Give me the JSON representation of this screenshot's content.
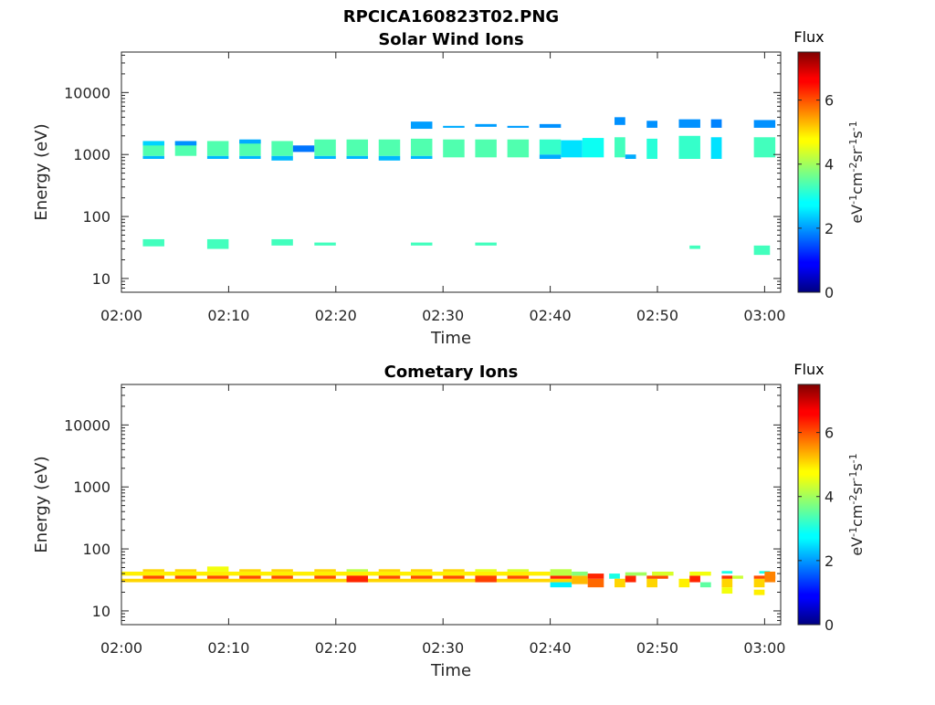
{
  "figure": {
    "title": "RPCICA160823T02.PNG"
  },
  "chart_data": [
    {
      "type": "heatmap",
      "title": "Solar Wind Ions",
      "xlabel": "Time",
      "ylabel": "Energy (eV)",
      "yscale": "log",
      "ylim": [
        6,
        45000
      ],
      "xlim_minutes": [
        0,
        61.5
      ],
      "x_ticks": [
        "02:00",
        "02:10",
        "02:20",
        "02:30",
        "02:40",
        "02:50",
        "03:00"
      ],
      "y_ticks": [
        "10",
        "100",
        "1000",
        "10000"
      ],
      "colorbar": {
        "title": "Flux",
        "label": "eV-1cm-2sr-1s-1",
        "range": [
          0,
          7.5
        ],
        "ticks": [
          "0",
          "2",
          "4",
          "6"
        ]
      },
      "cells": [
        [
          "02:02:00",
          "02:04:00",
          850,
          950,
          2.3
        ],
        [
          "02:02:00",
          "02:04:00",
          950,
          1600,
          3.4
        ],
        [
          "02:02:00",
          "02:04:00",
          1400,
          1650,
          2.5
        ],
        [
          "02:02:00",
          "02:04:00",
          33,
          43,
          3.3
        ],
        [
          "02:05:00",
          "02:07:00",
          950,
          1600,
          3.4
        ],
        [
          "02:05:00",
          "02:07:00",
          1400,
          1650,
          2.0
        ],
        [
          "02:08:00",
          "02:10:00",
          850,
          950,
          2.3
        ],
        [
          "02:08:00",
          "02:10:00",
          950,
          1650,
          3.4
        ],
        [
          "02:08:00",
          "02:10:00",
          30,
          43,
          3.3
        ],
        [
          "02:11:00",
          "02:13:00",
          850,
          950,
          2.3
        ],
        [
          "02:11:00",
          "02:13:00",
          950,
          1700,
          3.4
        ],
        [
          "02:11:00",
          "02:13:00",
          1500,
          1750,
          2.2
        ],
        [
          "02:14:00",
          "02:16:00",
          800,
          950,
          2.3
        ],
        [
          "02:14:00",
          "02:16:00",
          950,
          1650,
          3.4
        ],
        [
          "02:14:00",
          "02:16:00",
          34,
          43,
          3.3
        ],
        [
          "02:16:00",
          "02:18:00",
          1100,
          1400,
          1.8
        ],
        [
          "02:18:00",
          "02:20:00",
          850,
          950,
          2.3
        ],
        [
          "02:18:00",
          "02:20:00",
          950,
          1750,
          3.4
        ],
        [
          "02:18:00",
          "02:20:00",
          34,
          38,
          3.3
        ],
        [
          "02:21:00",
          "02:23:00",
          850,
          950,
          2.3
        ],
        [
          "02:21:00",
          "02:23:00",
          950,
          1750,
          3.4
        ],
        [
          "02:24:00",
          "02:26:00",
          800,
          950,
          2.3
        ],
        [
          "02:24:00",
          "02:26:00",
          950,
          1750,
          3.4
        ],
        [
          "02:27:00",
          "02:29:00",
          850,
          950,
          2.3
        ],
        [
          "02:27:00",
          "02:29:00",
          950,
          1800,
          3.4
        ],
        [
          "02:27:00",
          "02:29:00",
          2600,
          3400,
          2.1
        ],
        [
          "02:27:00",
          "02:29:00",
          34,
          38,
          3.3
        ],
        [
          "02:30:00",
          "02:32:00",
          900,
          1750,
          3.4
        ],
        [
          "02:30:00",
          "02:32:00",
          2700,
          2900,
          2.2
        ],
        [
          "02:33:00",
          "02:35:00",
          900,
          1750,
          3.4
        ],
        [
          "02:33:00",
          "02:35:00",
          2800,
          3100,
          2.1
        ],
        [
          "02:33:00",
          "02:35:00",
          34,
          38,
          3.3
        ],
        [
          "02:36:00",
          "02:38:00",
          900,
          1750,
          3.4
        ],
        [
          "02:36:00",
          "02:38:00",
          2700,
          2900,
          2.1
        ],
        [
          "02:39:00",
          "02:41:00",
          850,
          1000,
          2.2
        ],
        [
          "02:39:00",
          "02:41:00",
          1000,
          1750,
          3.2
        ],
        [
          "02:39:00",
          "02:41:00",
          2700,
          3100,
          2.0
        ],
        [
          "02:41:00",
          "02:43:00",
          900,
          1700,
          2.6
        ],
        [
          "02:43:00",
          "02:45:00",
          900,
          1850,
          2.9
        ],
        [
          "02:46:00",
          "02:47:00",
          900,
          1900,
          3.3
        ],
        [
          "02:46:00",
          "02:47:00",
          3000,
          4000,
          2.0
        ],
        [
          "02:47:00",
          "02:48:00",
          850,
          1000,
          2.2
        ],
        [
          "02:49:00",
          "02:50:00",
          850,
          1800,
          3.1
        ],
        [
          "02:49:00",
          "02:50:00",
          2700,
          3500,
          2.0
        ],
        [
          "02:52:00",
          "02:54:00",
          850,
          2000,
          3.2
        ],
        [
          "02:52:00",
          "02:54:00",
          2700,
          3700,
          2.0
        ],
        [
          "02:53:00",
          "02:54:00",
          30,
          34,
          3.3
        ],
        [
          "02:55:00",
          "02:56:00",
          850,
          1900,
          2.6
        ],
        [
          "02:55:00",
          "02:56:00",
          2700,
          3700,
          1.9
        ],
        [
          "02:59:00",
          "03:01:00",
          900,
          1900,
          3.3
        ],
        [
          "02:59:00",
          "03:01:00",
          2700,
          3600,
          2.0
        ],
        [
          "02:59:00",
          "03:00:30",
          24,
          34,
          3.3
        ]
      ]
    },
    {
      "type": "heatmap",
      "title": "Cometary Ions",
      "xlabel": "Time",
      "ylabel": "Energy (eV)",
      "yscale": "log",
      "ylim": [
        6,
        45000
      ],
      "xlim_minutes": [
        0,
        61.5
      ],
      "x_ticks": [
        "02:00",
        "02:10",
        "02:20",
        "02:30",
        "02:40",
        "02:50",
        "03:00"
      ],
      "y_ticks": [
        "10",
        "100",
        "1000",
        "10000"
      ],
      "colorbar": {
        "title": "Flux",
        "label": "eV-1cm-2sr-1s-1",
        "range": [
          0,
          7.5
        ],
        "ticks": [
          "0",
          "2",
          "4",
          "6"
        ]
      },
      "cells": [
        [
          "02:00:00",
          "02:40:00",
          29,
          33,
          5.0
        ],
        [
          "02:00:00",
          "02:40:00",
          37,
          43,
          4.8
        ],
        [
          "02:02:00",
          "02:04:00",
          33,
          37,
          6.0
        ],
        [
          "02:02:00",
          "02:04:00",
          43,
          47,
          5.0
        ],
        [
          "02:05:00",
          "02:07:00",
          33,
          37,
          6.0
        ],
        [
          "02:05:00",
          "02:07:00",
          43,
          47,
          5.0
        ],
        [
          "02:08:00",
          "02:10:00",
          33,
          37,
          6.0
        ],
        [
          "02:08:00",
          "02:10:00",
          43,
          52,
          4.6
        ],
        [
          "02:11:00",
          "02:13:00",
          33,
          37,
          6.0
        ],
        [
          "02:11:00",
          "02:13:00",
          43,
          47,
          5.0
        ],
        [
          "02:14:00",
          "02:16:00",
          33,
          37,
          6.0
        ],
        [
          "02:14:00",
          "02:16:00",
          43,
          47,
          5.0
        ],
        [
          "02:18:00",
          "02:20:00",
          33,
          37,
          6.0
        ],
        [
          "02:18:00",
          "02:20:00",
          43,
          47,
          5.0
        ],
        [
          "02:21:00",
          "02:23:00",
          29,
          37,
          6.3
        ],
        [
          "02:21:00",
          "02:23:00",
          43,
          47,
          4.2
        ],
        [
          "02:24:00",
          "02:26:00",
          33,
          37,
          6.0
        ],
        [
          "02:24:00",
          "02:26:00",
          43,
          47,
          5.0
        ],
        [
          "02:27:00",
          "02:29:00",
          33,
          37,
          6.0
        ],
        [
          "02:27:00",
          "02:29:00",
          43,
          47,
          5.0
        ],
        [
          "02:30:00",
          "02:32:00",
          33,
          37,
          6.0
        ],
        [
          "02:30:00",
          "02:32:00",
          43,
          47,
          5.0
        ],
        [
          "02:33:00",
          "02:35:00",
          29,
          37,
          6.1
        ],
        [
          "02:33:00",
          "02:35:00",
          43,
          47,
          4.5
        ],
        [
          "02:36:00",
          "02:38:00",
          33,
          37,
          6.0
        ],
        [
          "02:36:00",
          "02:38:00",
          43,
          47,
          4.4
        ],
        [
          "02:40:00",
          "02:42:00",
          24,
          29,
          2.7
        ],
        [
          "02:40:00",
          "02:42:00",
          29,
          33,
          5.0
        ],
        [
          "02:40:00",
          "02:42:00",
          33,
          37,
          6.3
        ],
        [
          "02:40:00",
          "02:42:00",
          37,
          47,
          4.2
        ],
        [
          "02:42:00",
          "02:43:30",
          27,
          37,
          5.2
        ],
        [
          "02:42:00",
          "02:43:30",
          37,
          43,
          3.8
        ],
        [
          "02:43:30",
          "02:45:00",
          24,
          33,
          5.8
        ],
        [
          "02:43:30",
          "02:45:00",
          33,
          40,
          6.3
        ],
        [
          "02:45:30",
          "02:46:30",
          33,
          40,
          3.0
        ],
        [
          "02:46:00",
          "02:47:00",
          24,
          33,
          5.0
        ],
        [
          "02:47:00",
          "02:48:00",
          29,
          37,
          6.3
        ],
        [
          "02:47:00",
          "02:49:00",
          37,
          42,
          4.0
        ],
        [
          "02:49:00",
          "02:50:00",
          24,
          33,
          5.0
        ],
        [
          "02:49:00",
          "02:51:00",
          33,
          37,
          6.0
        ],
        [
          "02:49:30",
          "02:51:30",
          37,
          43,
          4.4
        ],
        [
          "02:52:00",
          "02:53:00",
          24,
          33,
          4.8
        ],
        [
          "02:53:00",
          "02:54:00",
          29,
          37,
          6.3
        ],
        [
          "02:53:00",
          "02:55:00",
          37,
          43,
          4.6
        ],
        [
          "02:54:00",
          "02:55:00",
          24,
          29,
          3.5
        ],
        [
          "02:56:00",
          "02:57:00",
          24,
          33,
          5.0
        ],
        [
          "02:56:00",
          "02:57:00",
          33,
          37,
          6.2
        ],
        [
          "02:56:00",
          "02:57:00",
          19,
          24,
          4.6
        ],
        [
          "02:56:00",
          "02:57:00",
          40,
          44,
          3.0
        ],
        [
          "02:57:00",
          "02:58:00",
          33,
          37,
          4.3
        ],
        [
          "02:59:00",
          "03:00:00",
          24,
          33,
          5.0
        ],
        [
          "02:59:00",
          "03:00:00",
          18,
          22,
          4.8
        ],
        [
          "02:59:00",
          "03:01:00",
          33,
          37,
          6.0
        ],
        [
          "02:59:30",
          "03:00:30",
          40,
          44,
          3.0
        ],
        [
          "03:00:00",
          "03:01:00",
          29,
          43,
          5.6
        ]
      ]
    }
  ]
}
